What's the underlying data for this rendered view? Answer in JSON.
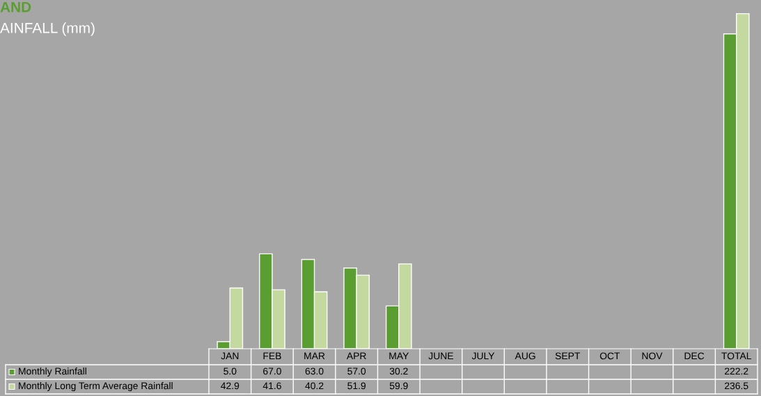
{
  "chart_data": {
    "type": "bar",
    "title": "AND",
    "subtitle": "AINFALL (mm)",
    "categories": [
      "JAN",
      "FEB",
      "MAR",
      "APR",
      "MAY",
      "JUNE",
      "JULY",
      "AUG",
      "SEPT",
      "OCT",
      "NOV",
      "DEC",
      "TOTAL"
    ],
    "series": [
      {
        "name": "Monthly Rainfall",
        "color": "#5a9e32",
        "values": [
          5.0,
          67.0,
          63.0,
          57.0,
          30.2,
          null,
          null,
          null,
          null,
          null,
          null,
          null,
          222.2
        ],
        "value_labels": [
          "5.0",
          "67.0",
          "63.0",
          "57.0",
          "30.2",
          null,
          null,
          null,
          null,
          null,
          null,
          null,
          "222.2"
        ]
      },
      {
        "name": "Monthly Long Term Average Rainfall",
        "color": "#c4d9a0",
        "values": [
          42.9,
          41.6,
          40.2,
          51.9,
          59.9,
          null,
          null,
          null,
          null,
          null,
          null,
          null,
          236.5
        ],
        "value_labels": [
          "42.9",
          "41.6",
          "40.2",
          "51.9",
          "59.9",
          null,
          null,
          null,
          null,
          null,
          null,
          null,
          "236.5"
        ]
      }
    ],
    "legend": "bottom left"
  }
}
